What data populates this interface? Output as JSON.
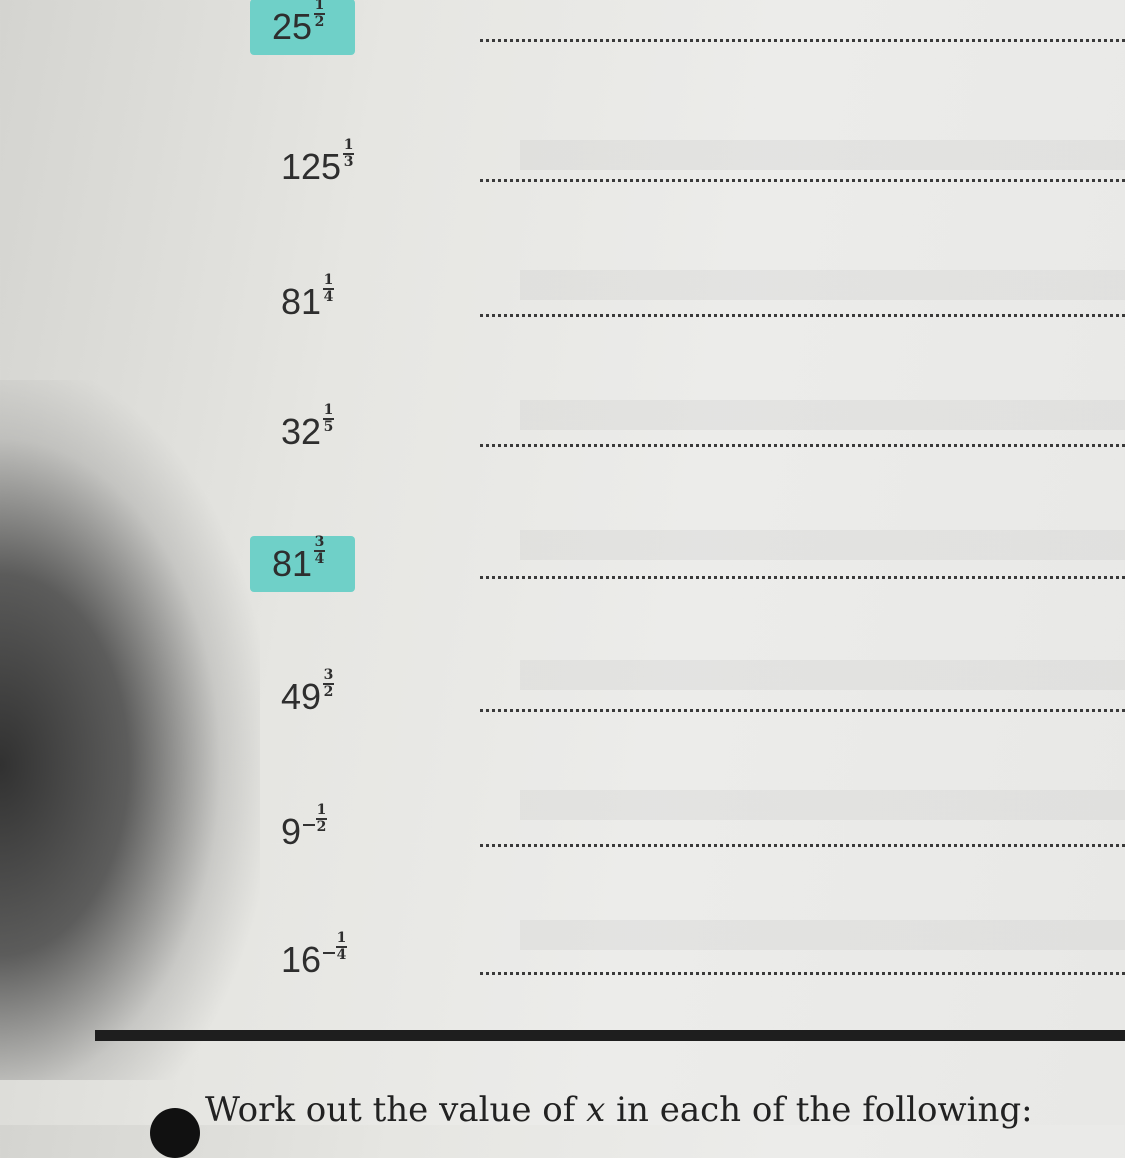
{
  "exercises": [
    {
      "base": "25",
      "sign": "",
      "num": "1",
      "den": "2",
      "highlighted": true
    },
    {
      "base": "125",
      "sign": "",
      "num": "1",
      "den": "3",
      "highlighted": false
    },
    {
      "base": "81",
      "sign": "",
      "num": "1",
      "den": "4",
      "highlighted": false
    },
    {
      "base": "32",
      "sign": "",
      "num": "1",
      "den": "5",
      "highlighted": false
    },
    {
      "base": "81",
      "sign": "",
      "num": "3",
      "den": "4",
      "highlighted": true
    },
    {
      "base": "49",
      "sign": "",
      "num": "3",
      "den": "2",
      "highlighted": false
    },
    {
      "base": "9",
      "sign": "-",
      "num": "1",
      "den": "2",
      "highlighted": false
    },
    {
      "base": "16",
      "sign": "-",
      "num": "1",
      "den": "4",
      "highlighted": false
    }
  ],
  "highlight_color": "#6fd0c8",
  "next_section": {
    "instruction_prefix": "Work out the value of ",
    "variable": "x",
    "instruction_suffix": " in each of the following:"
  }
}
